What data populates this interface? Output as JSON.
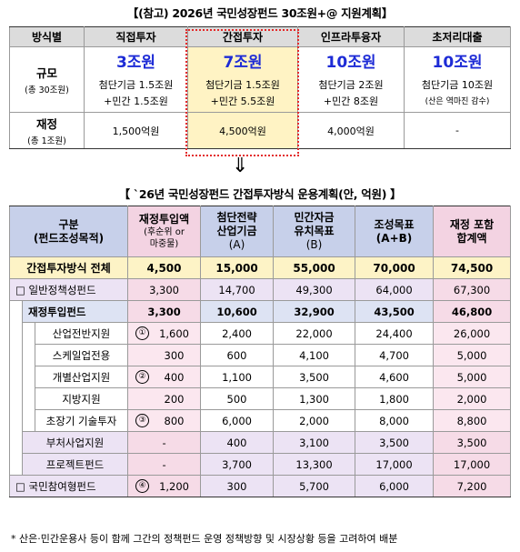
{
  "title1": "【(참고) 2026년 국민성장펀드 30조원+@ 지원계획】",
  "top": {
    "headers": [
      "방식별",
      "직접투자",
      "간접투자",
      "인프라투융자",
      "초저리대출"
    ],
    "scale_label": "규모",
    "scale_sub": "(총 30조원)",
    "cols": [
      {
        "amount": "3조원",
        "line1": "첨단기금 1.5조원",
        "line2": "+민간 1.5조원"
      },
      {
        "amount": "7조원",
        "line1": "첨단기금 1.5조원",
        "line2": "+민간 5.5조원"
      },
      {
        "amount": "10조원",
        "line1": "첨단기금 2조원",
        "line2": "+민간 8조원"
      },
      {
        "amount": "10조원",
        "line1": "첨단기금 10조원",
        "line2": "(산은 역마진 감수)"
      }
    ],
    "fiscal_label": "재정",
    "fiscal_sub": "(총 1조원)",
    "fiscal": [
      "1,500억원",
      "4,500억원",
      "4,000억원",
      "-"
    ]
  },
  "arrow": "⇓",
  "title2": "【 `26년 국민성장펀드 간접투자방식 운용계획(안, 억원) 】",
  "bottom": {
    "headers": {
      "c0a": "구분",
      "c0b": "(펀드조성목적)",
      "c1a": "재정투입액",
      "c1b": "(후순위 or",
      "c1c": "마중물)",
      "c2a": "첨단전략",
      "c2b": "산업기금",
      "c2c": "(A)",
      "c3a": "민간자금",
      "c3b": "유치목표",
      "c3c": "(B)",
      "c4a": "조성목표",
      "c4b": "(A+B)",
      "c5a": "재정 포함",
      "c5b": "합계액"
    },
    "rows": {
      "total": {
        "name": "간접투자방식 전체",
        "v": [
          "4,500",
          "15,000",
          "55,000",
          "70,000",
          "74,500"
        ]
      },
      "gen": {
        "name": "□ 일반정책성펀드",
        "v": [
          "3,300",
          "14,700",
          "49,300",
          "64,000",
          "67,300"
        ]
      },
      "fund": {
        "name": "재정투입펀드",
        "v": [
          "3,300",
          "10,600",
          "32,900",
          "43,500",
          "46,800"
        ]
      },
      "r1": {
        "name": "산업전반지원",
        "mark": "①",
        "v": [
          "1,600",
          "2,400",
          "22,000",
          "24,400",
          "26,000"
        ]
      },
      "r2": {
        "name": "스케일업전용",
        "v": [
          "300",
          "600",
          "4,100",
          "4,700",
          "5,000"
        ]
      },
      "r3": {
        "name": "개별산업지원",
        "mark": "②",
        "v": [
          "400",
          "1,100",
          "3,500",
          "4,600",
          "5,000"
        ]
      },
      "r4": {
        "name": "지방지원",
        "v": [
          "200",
          "500",
          "1,300",
          "1,800",
          "2,000"
        ]
      },
      "r5": {
        "name": "초장기 기술투자",
        "mark": "③",
        "v": [
          "800",
          "6,000",
          "2,000",
          "8,000",
          "8,800"
        ]
      },
      "r6": {
        "name": "부처사업지원",
        "v": [
          "-",
          "400",
          "3,100",
          "3,500",
          "3,500"
        ]
      },
      "r7": {
        "name": "프로젝트펀드",
        "v": [
          "-",
          "3,700",
          "13,300",
          "17,000",
          "17,000"
        ]
      },
      "civ": {
        "name": "□ 국민참여형펀드",
        "mark": "④",
        "v": [
          "1,200",
          "300",
          "5,700",
          "6,000",
          "7,200"
        ]
      }
    }
  },
  "note": "* 산은·민간운용사 등이 함께 그간의 정책펀드 운영 정책방향 및 시장상황 등을 고려하여 배분"
}
